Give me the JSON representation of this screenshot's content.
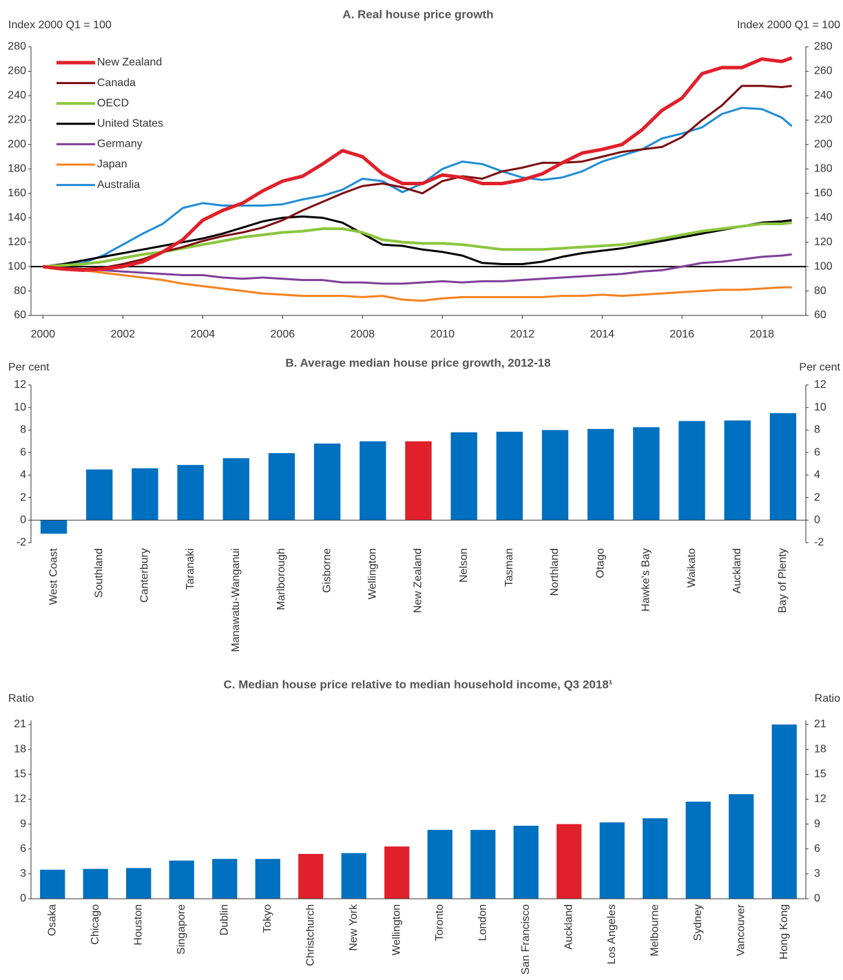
{
  "chart_data": [
    {
      "type": "line",
      "title": "A. Real house price growth",
      "ylabel": "Index 2000 Q1 = 100",
      "y2label": "Index 2000 Q1 = 100",
      "x": [
        2000,
        2000.5,
        2001,
        2001.5,
        2002,
        2002.5,
        2003,
        2003.5,
        2004,
        2004.5,
        2005,
        2005.5,
        2006,
        2006.5,
        2007,
        2007.5,
        2008,
        2008.5,
        2009,
        2009.5,
        2010,
        2010.5,
        2011,
        2011.5,
        2012,
        2012.5,
        2013,
        2013.5,
        2014,
        2014.5,
        2015,
        2015.5,
        2016,
        2016.5,
        2017,
        2017.5,
        2018,
        2018.5,
        2018.75
      ],
      "xlim": [
        1999.7,
        2019.1
      ],
      "xticks": [
        2000,
        2002,
        2004,
        2006,
        2008,
        2010,
        2012,
        2014,
        2016,
        2018
      ],
      "ylim": [
        60,
        280
      ],
      "yticks": [
        60,
        80,
        100,
        120,
        140,
        160,
        180,
        200,
        220,
        240,
        260,
        280
      ],
      "reference_line": 100,
      "legend": "upper left",
      "series": [
        {
          "name": "New Zealand",
          "color": "#e0202a",
          "width": 5,
          "values": [
            100,
            98,
            97,
            98,
            100,
            104,
            112,
            122,
            138,
            146,
            152,
            162,
            170,
            174,
            184,
            195,
            190,
            176,
            168,
            168,
            175,
            173,
            168,
            168,
            171,
            176,
            185,
            193,
            196,
            200,
            212,
            228,
            238,
            258,
            263,
            263,
            270,
            268,
            271
          ]
        },
        {
          "name": "Canada",
          "color": "#7b0c10",
          "width": 3,
          "values": [
            100,
            99,
            98,
            99,
            102,
            106,
            112,
            116,
            121,
            125,
            128,
            132,
            138,
            146,
            153,
            160,
            166,
            168,
            165,
            160,
            170,
            174,
            172,
            178,
            181,
            185,
            185,
            186,
            190,
            194,
            196,
            198,
            206,
            220,
            232,
            248,
            248,
            247,
            248
          ]
        },
        {
          "name": "OECD",
          "color": "#8cc63f",
          "width": 4,
          "values": [
            100,
            101,
            102,
            104,
            107,
            110,
            112,
            115,
            118,
            121,
            124,
            126,
            128,
            129,
            131,
            131,
            128,
            122,
            120,
            119,
            119,
            118,
            116,
            114,
            114,
            114,
            115,
            116,
            117,
            118,
            120,
            123,
            126,
            129,
            131,
            133,
            135,
            135,
            136
          ]
        },
        {
          "name": "United States",
          "color": "#000000",
          "width": 3,
          "values": [
            100,
            102,
            105,
            108,
            111,
            114,
            117,
            120,
            123,
            127,
            132,
            137,
            140,
            141,
            140,
            136,
            127,
            118,
            117,
            114,
            112,
            109,
            103,
            102,
            102,
            104,
            108,
            111,
            113,
            115,
            118,
            121,
            124,
            127,
            130,
            133,
            136,
            137,
            138
          ]
        },
        {
          "name": "Germany",
          "color": "#7f3f98",
          "width": 3,
          "values": [
            100,
            99,
            98,
            97,
            96,
            95,
            94,
            93,
            93,
            91,
            90,
            91,
            90,
            89,
            89,
            87,
            87,
            86,
            86,
            87,
            88,
            87,
            88,
            88,
            89,
            90,
            91,
            92,
            93,
            94,
            96,
            97,
            100,
            103,
            104,
            106,
            108,
            109,
            110
          ]
        },
        {
          "name": "Japan",
          "color": "#f58220",
          "width": 3,
          "values": [
            100,
            98,
            97,
            95,
            93,
            91,
            89,
            86,
            84,
            82,
            80,
            78,
            77,
            76,
            76,
            76,
            75,
            76,
            73,
            72,
            74,
            75,
            75,
            75,
            75,
            75,
            76,
            76,
            77,
            76,
            77,
            78,
            79,
            80,
            81,
            81,
            82,
            83,
            83
          ]
        },
        {
          "name": "Australia",
          "color": "#1f8dd6",
          "width": 3,
          "values": [
            100,
            101,
            103,
            109,
            118,
            127,
            135,
            148,
            152,
            150,
            150,
            150,
            151,
            155,
            158,
            163,
            172,
            170,
            161,
            168,
            180,
            186,
            184,
            178,
            173,
            171,
            173,
            178,
            186,
            191,
            196,
            205,
            209,
            214,
            225,
            230,
            229,
            222,
            215
          ]
        }
      ]
    },
    {
      "type": "bar",
      "title": "B. Average median house price growth, 2012-18",
      "ylabel": "Per cent",
      "y2label": "Per cent",
      "categories": [
        "West Coast",
        "Southland",
        "Canterbury",
        "Taranaki",
        "Manawatu-Wanganui",
        "Marlborough",
        "Gisborne",
        "Wellington",
        "New Zealand",
        "Nelson",
        "Tasman",
        "Northland",
        "Otago",
        "Hawke's Bay",
        "Waikato",
        "Auckland",
        "Bay of Plenty"
      ],
      "values": [
        -1.2,
        4.5,
        4.6,
        4.9,
        5.5,
        5.95,
        6.8,
        7.0,
        7.0,
        7.8,
        7.85,
        8.0,
        8.1,
        8.25,
        8.8,
        8.85,
        9.5
      ],
      "colors": [
        "#0070c0",
        "#0070c0",
        "#0070c0",
        "#0070c0",
        "#0070c0",
        "#0070c0",
        "#0070c0",
        "#0070c0",
        "#e0202a",
        "#0070c0",
        "#0070c0",
        "#0070c0",
        "#0070c0",
        "#0070c0",
        "#0070c0",
        "#0070c0",
        "#0070c0"
      ],
      "ylim": [
        -2,
        12
      ],
      "yticks": [
        -2,
        0,
        2,
        4,
        6,
        8,
        10,
        12
      ]
    },
    {
      "type": "bar",
      "title": "C. Median house price relative to median household income, Q3 2018¹",
      "ylabel": "Ratio",
      "y2label": "Ratio",
      "categories": [
        "Osaka",
        "Chicago",
        "Houston",
        "Singapore",
        "Dublin",
        "Tokyo",
        "Christchurch",
        "New York",
        "Wellington",
        "Toronto",
        "London",
        "San Francisco",
        "Auckland",
        "Los Angeles",
        "Melbourne",
        "Sydney",
        "Vancouver",
        "Hong Kong"
      ],
      "values": [
        3.5,
        3.6,
        3.7,
        4.6,
        4.8,
        4.8,
        5.4,
        5.5,
        6.3,
        8.3,
        8.3,
        8.8,
        9.0,
        9.2,
        9.7,
        11.7,
        12.6,
        21
      ],
      "colors": [
        "#0070c0",
        "#0070c0",
        "#0070c0",
        "#0070c0",
        "#0070c0",
        "#0070c0",
        "#e0202a",
        "#0070c0",
        "#e0202a",
        "#0070c0",
        "#0070c0",
        "#0070c0",
        "#e0202a",
        "#0070c0",
        "#0070c0",
        "#0070c0",
        "#0070c0",
        "#0070c0"
      ],
      "ylim": [
        0,
        21.5
      ],
      "yticks": [
        0,
        3,
        6,
        9,
        12,
        15,
        18,
        21
      ]
    }
  ]
}
